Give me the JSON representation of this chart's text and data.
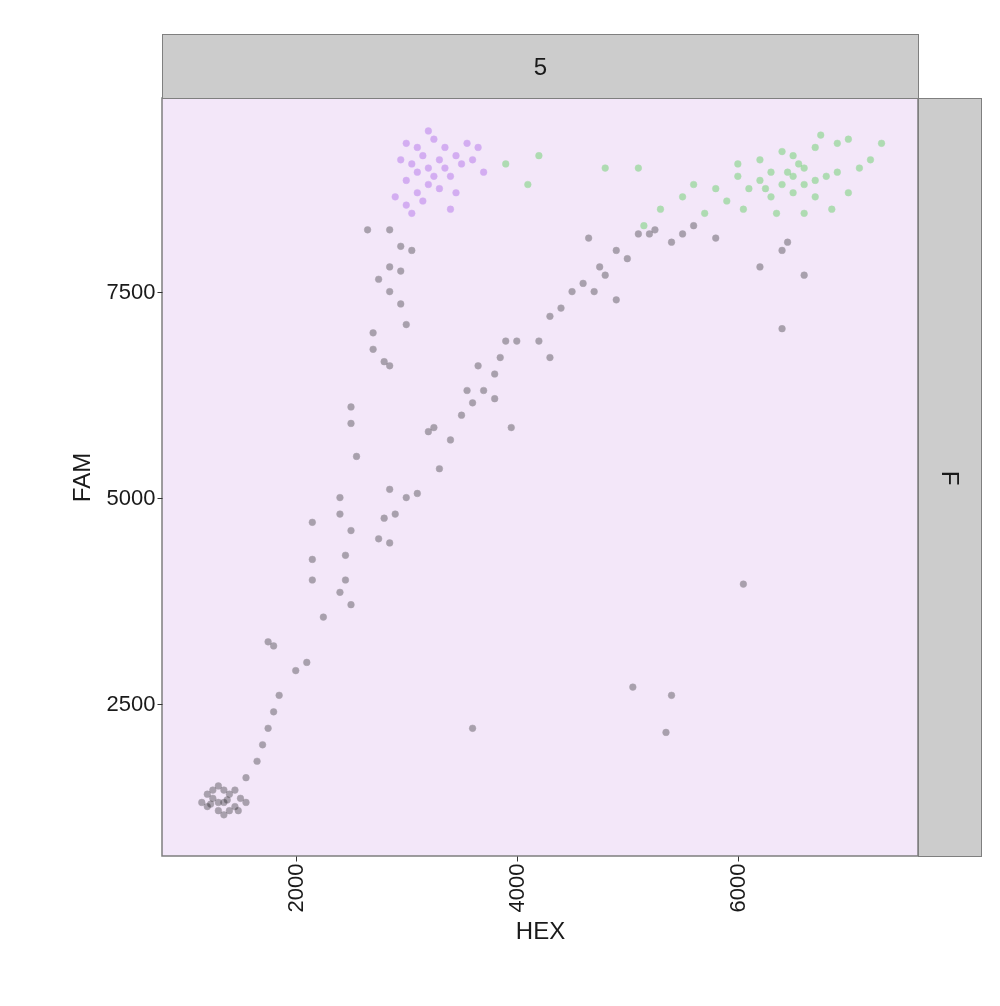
{
  "chart_data": {
    "type": "scatter",
    "title": "5",
    "annotations": [
      "F"
    ],
    "xlabel": "HEX",
    "ylabel": "FAM",
    "xlim": [
      790,
      7630
    ],
    "ylim": [
      650,
      9850
    ],
    "xticks": [
      2000,
      4000,
      6000
    ],
    "yticks": [
      2500,
      5000,
      7500
    ],
    "marker": "circle",
    "series": [
      {
        "color": "#000000",
        "x": [
          1150,
          1200,
          1250,
          1300,
          1350,
          1400,
          1450,
          1500,
          1250,
          1350,
          1200,
          1400,
          1300,
          1450,
          1550,
          1300,
          1380,
          1230,
          1480,
          1350,
          1550,
          1650,
          1700,
          1750,
          1800,
          1850,
          1800,
          1750,
          2000,
          2100,
          2150,
          2150,
          2150,
          2250,
          2400,
          2450,
          2500,
          2450,
          2500,
          2400,
          2400,
          2550,
          2500,
          2500,
          2700,
          2700,
          2750,
          2850,
          2950,
          3000,
          2950,
          2850,
          3050,
          2850,
          2950,
          2650,
          2850,
          2800,
          2850,
          2800,
          2900,
          3000,
          3100,
          2750,
          2850,
          3300,
          3200,
          3250,
          3400,
          3500,
          3550,
          3600,
          3700,
          3650,
          3800,
          3800,
          3850,
          3900,
          4000,
          3950,
          4200,
          4300,
          4300,
          4400,
          4500,
          4600,
          4700,
          4750,
          4800,
          4900,
          4900,
          5000,
          5100,
          5200,
          5400,
          5500,
          5600,
          5800,
          6200,
          6400,
          6450,
          6600,
          6400,
          6050,
          5050,
          5400,
          5350,
          3600,
          4650,
          5250
        ],
        "values": [
          1300,
          1250,
          1350,
          1200,
          1300,
          1400,
          1250,
          1350,
          1450,
          1150,
          1400,
          1200,
          1500,
          1450,
          1300,
          1300,
          1330,
          1280,
          1200,
          1450,
          1600,
          1800,
          2000,
          2200,
          2400,
          2600,
          3200,
          3250,
          2900,
          3000,
          4000,
          4250,
          4700,
          3550,
          3850,
          4000,
          3700,
          4300,
          4600,
          5000,
          4800,
          5500,
          5900,
          6100,
          6800,
          7000,
          7650,
          7500,
          7350,
          7100,
          7750,
          7800,
          8000,
          8250,
          8050,
          8250,
          6600,
          6650,
          5100,
          4750,
          4800,
          5000,
          5050,
          4500,
          4450,
          5350,
          5800,
          5850,
          5700,
          6000,
          6300,
          6150,
          6300,
          6600,
          6500,
          6200,
          6700,
          6900,
          6900,
          5850,
          6900,
          6700,
          7200,
          7300,
          7500,
          7600,
          7500,
          7800,
          7700,
          7400,
          8000,
          7900,
          8200,
          8200,
          8100,
          8200,
          8300,
          8150,
          7800,
          8000,
          8100,
          7700,
          7050,
          3950,
          2700,
          2600,
          2150,
          2200,
          8150,
          8250
        ]
      },
      {
        "color": "#8a2be2",
        "x": [
          3200,
          3100,
          3300,
          3250,
          3150,
          3350,
          3050,
          3400,
          3200,
          3300,
          3100,
          3250,
          3000,
          2950,
          3450,
          3500,
          3550,
          3650,
          3700,
          2900,
          3000,
          3150,
          3400,
          3450,
          3100,
          3350,
          3000,
          3600,
          3200,
          3050
        ],
        "values": [
          9000,
          8950,
          9100,
          8900,
          9150,
          9000,
          9050,
          8900,
          8800,
          8750,
          9250,
          9350,
          9300,
          9100,
          9150,
          9050,
          9300,
          9250,
          8950,
          8650,
          8550,
          8600,
          8500,
          8700,
          8700,
          9250,
          8850,
          9100,
          9450,
          8450
        ]
      },
      {
        "color": "#12c012",
        "x": [
          3900,
          4200,
          4100,
          4800,
          5100,
          5150,
          5300,
          5500,
          5600,
          7300,
          6500,
          6300,
          6700,
          6400,
          6600,
          6800,
          6200,
          6900,
          6500,
          6700,
          6300,
          6100,
          6000,
          5900,
          6500,
          6700,
          6400,
          6900,
          7000,
          7100,
          7200,
          6600,
          6350,
          6850,
          5800,
          5700,
          6050,
          6200,
          6000,
          6750,
          7000,
          6600,
          6450,
          6550,
          6250
        ],
        "values": [
          9050,
          9150,
          8800,
          9000,
          9000,
          8300,
          8500,
          8650,
          8800,
          9300,
          8900,
          8950,
          8850,
          8800,
          9000,
          8900,
          8850,
          8950,
          8700,
          8650,
          8650,
          8750,
          8900,
          8600,
          9150,
          9250,
          9200,
          9300,
          8700,
          9000,
          9100,
          8450,
          8450,
          8500,
          8750,
          8450,
          8500,
          9100,
          9050,
          9400,
          9350,
          8800,
          8950,
          9050,
          8750
        ]
      }
    ]
  }
}
